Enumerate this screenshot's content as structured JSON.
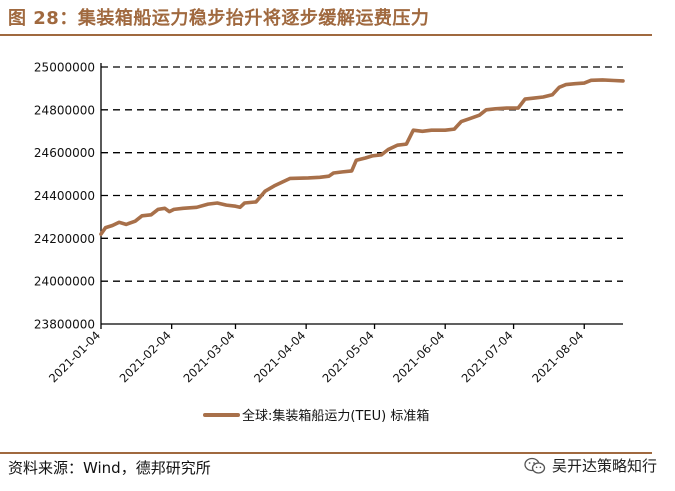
{
  "figure": {
    "title": "图 28：集装箱船运力稳步抬升将逐步缓解运费压力",
    "source": "资料来源：Wind，德邦研究所",
    "brand": "吴开达策略知行",
    "colors": {
      "accent": "#a0693f",
      "line": "#a8704a",
      "grid": "#000000"
    }
  },
  "chart_data": {
    "type": "line",
    "title": "",
    "xlabel": "",
    "ylabel": "",
    "ylim": [
      23800000,
      25000000
    ],
    "xlim": [
      "2021-01-04",
      "2021-08-21"
    ],
    "yticks": [
      "23800000",
      "24000000",
      "24200000",
      "24400000",
      "24600000",
      "24800000",
      "25000000"
    ],
    "ytick_values": [
      23800000,
      24000000,
      24200000,
      24400000,
      24600000,
      24800000,
      25000000
    ],
    "xticks": [
      "2021-01-04",
      "2021-02-04",
      "2021-03-04",
      "2021-04-04",
      "2021-05-04",
      "2021-06-04",
      "2021-07-04",
      "2021-08-04"
    ],
    "grid": "horizontal dashed",
    "legend": "bottom",
    "series": [
      {
        "name": "全球:集装箱船运力(TEU) 标准箱",
        "color": "#a8704a",
        "points": [
          [
            "2021-01-04",
            24220000
          ],
          [
            "2021-01-06",
            24250000
          ],
          [
            "2021-01-09",
            24260000
          ],
          [
            "2021-01-12",
            24275000
          ],
          [
            "2021-01-15",
            24265000
          ],
          [
            "2021-01-19",
            24280000
          ],
          [
            "2021-01-22",
            24305000
          ],
          [
            "2021-01-26",
            24310000
          ],
          [
            "2021-01-29",
            24335000
          ],
          [
            "2021-02-01",
            24340000
          ],
          [
            "2021-02-03",
            24325000
          ],
          [
            "2021-02-05",
            24335000
          ],
          [
            "2021-02-09",
            24340000
          ],
          [
            "2021-02-15",
            24345000
          ],
          [
            "2021-02-20",
            24360000
          ],
          [
            "2021-02-24",
            24365000
          ],
          [
            "2021-02-28",
            24355000
          ],
          [
            "2021-03-04",
            24350000
          ],
          [
            "2021-03-06",
            24345000
          ],
          [
            "2021-03-08",
            24365000
          ],
          [
            "2021-03-13",
            24370000
          ],
          [
            "2021-03-17",
            24420000
          ],
          [
            "2021-03-21",
            24445000
          ],
          [
            "2021-03-24",
            24460000
          ],
          [
            "2021-03-28",
            24480000
          ],
          [
            "2021-04-05",
            24482000
          ],
          [
            "2021-04-10",
            24485000
          ],
          [
            "2021-04-14",
            24490000
          ],
          [
            "2021-04-16",
            24505000
          ],
          [
            "2021-04-20",
            24510000
          ],
          [
            "2021-04-24",
            24515000
          ],
          [
            "2021-04-26",
            24565000
          ],
          [
            "2021-04-30",
            24575000
          ],
          [
            "2021-05-03",
            24585000
          ],
          [
            "2021-05-07",
            24590000
          ],
          [
            "2021-05-10",
            24615000
          ],
          [
            "2021-05-14",
            24635000
          ],
          [
            "2021-05-18",
            24640000
          ],
          [
            "2021-05-21",
            24705000
          ],
          [
            "2021-05-25",
            24700000
          ],
          [
            "2021-05-29",
            24705000
          ],
          [
            "2021-06-04",
            24705000
          ],
          [
            "2021-06-08",
            24710000
          ],
          [
            "2021-06-11",
            24745000
          ],
          [
            "2021-06-15",
            24760000
          ],
          [
            "2021-06-19",
            24775000
          ],
          [
            "2021-06-22",
            24800000
          ],
          [
            "2021-06-26",
            24805000
          ],
          [
            "2021-07-01",
            24808000
          ],
          [
            "2021-07-06",
            24808000
          ],
          [
            "2021-07-09",
            24850000
          ],
          [
            "2021-07-13",
            24855000
          ],
          [
            "2021-07-17",
            24860000
          ],
          [
            "2021-07-21",
            24870000
          ],
          [
            "2021-07-24",
            24905000
          ],
          [
            "2021-07-27",
            24918000
          ],
          [
            "2021-07-31",
            24922000
          ],
          [
            "2021-08-04",
            24925000
          ],
          [
            "2021-08-07",
            24938000
          ],
          [
            "2021-08-12",
            24940000
          ],
          [
            "2021-08-17",
            24937000
          ],
          [
            "2021-08-21",
            24935000
          ]
        ]
      }
    ]
  }
}
